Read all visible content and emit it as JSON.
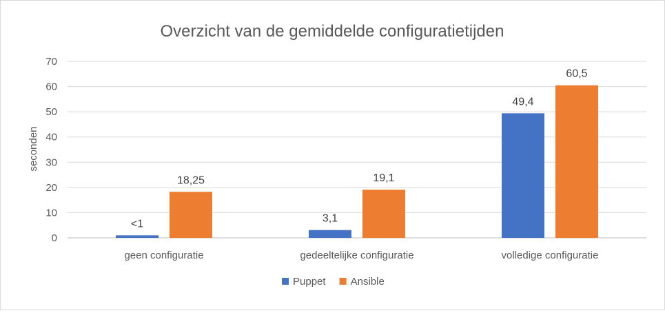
{
  "chart_data": {
    "type": "bar",
    "title": "Overzicht van de gemiddelde configuratietijden",
    "xlabel": "",
    "ylabel": "seconden",
    "ylim": [
      0,
      70
    ],
    "yticks": [
      0,
      10,
      20,
      30,
      40,
      50,
      60,
      70
    ],
    "grid": true,
    "legend_position": "bottom",
    "categories": [
      "geen configuratie",
      "gedeeltelijke configuratie",
      "volledige configuratie"
    ],
    "series": [
      {
        "name": "Puppet",
        "color": "#4472c4",
        "values": [
          1,
          3.1,
          49.4
        ],
        "labels": [
          "<1",
          "3,1",
          "49,4"
        ]
      },
      {
        "name": "Ansible",
        "color": "#ed7d31",
        "values": [
          18.25,
          19.1,
          60.5
        ],
        "labels": [
          "18,25",
          "19,1",
          "60,5"
        ]
      }
    ]
  }
}
